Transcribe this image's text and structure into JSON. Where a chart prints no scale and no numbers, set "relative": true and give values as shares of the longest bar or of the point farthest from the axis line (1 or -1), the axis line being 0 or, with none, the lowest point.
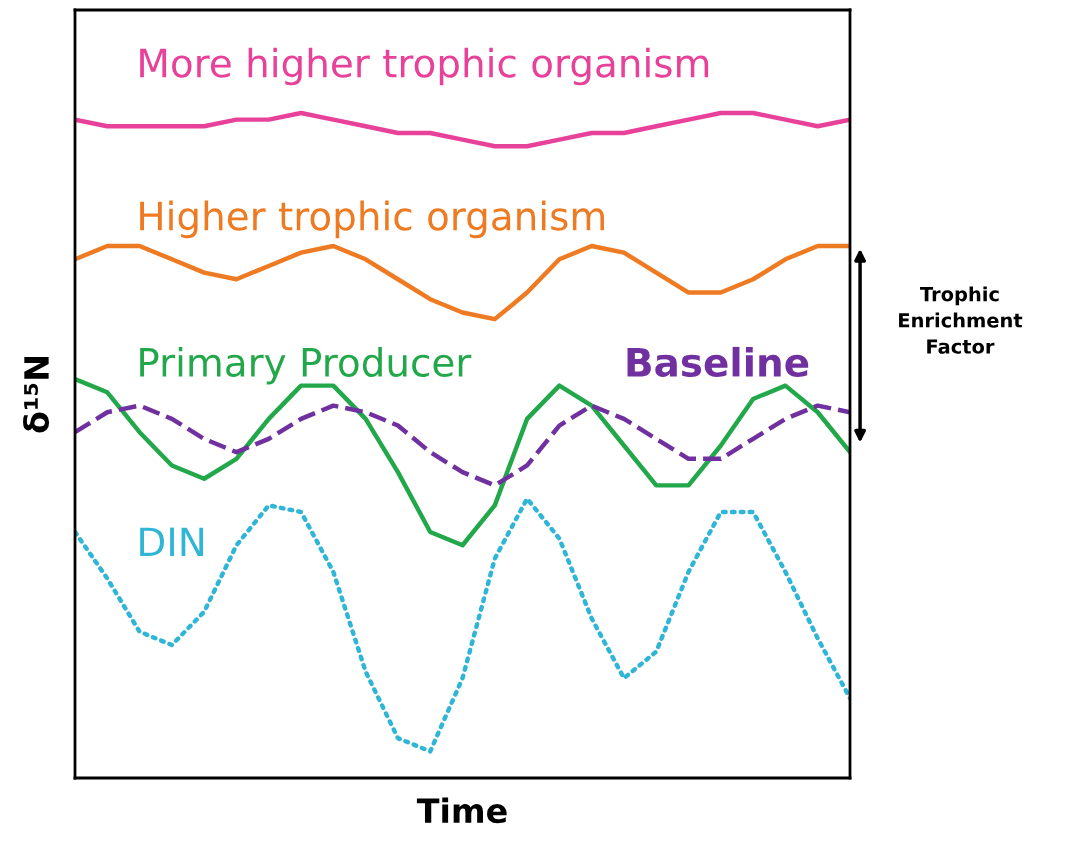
{
  "chart_data": {
    "type": "line",
    "relative": true,
    "xlabel": "Time",
    "ylabel": "δ¹⁵N",
    "categories": [
      null,
      null,
      null,
      null,
      null,
      null,
      null,
      null,
      null,
      null,
      null,
      null,
      null,
      null,
      null,
      null,
      null,
      null,
      null,
      null,
      null,
      null,
      null,
      null,
      null
    ],
    "series": [
      {
        "name": "More higher trophic organism",
        "color": "#e8419a",
        "line_style": "solid",
        "values": [
          0.99,
          0.98,
          0.98,
          0.98,
          0.98,
          0.99,
          0.99,
          1.0,
          0.99,
          0.98,
          0.97,
          0.97,
          0.96,
          0.95,
          0.95,
          0.96,
          0.97,
          0.97,
          0.98,
          0.99,
          1.0,
          1.0,
          0.99,
          0.98,
          0.99
        ]
      },
      {
        "name": "Higher trophic organism",
        "color": "#ee7a22",
        "line_style": "solid",
        "values": [
          0.78,
          0.8,
          0.8,
          0.78,
          0.76,
          0.75,
          0.77,
          0.79,
          0.8,
          0.78,
          0.75,
          0.72,
          0.7,
          0.69,
          0.73,
          0.78,
          0.8,
          0.79,
          0.76,
          0.73,
          0.73,
          0.75,
          0.78,
          0.8,
          0.8
        ]
      },
      {
        "name": "Primary Producer",
        "color": "#22a84a",
        "line_style": "solid",
        "values": [
          0.6,
          0.58,
          0.52,
          0.47,
          0.45,
          0.48,
          0.54,
          0.59,
          0.59,
          0.54,
          0.46,
          0.37,
          0.35,
          0.41,
          0.54,
          0.59,
          0.56,
          0.5,
          0.44,
          0.44,
          0.5,
          0.57,
          0.59,
          0.55,
          0.49
        ]
      },
      {
        "name": "Baseline",
        "color": "#7030a0",
        "line_style": "dashed",
        "values": [
          0.52,
          0.55,
          0.56,
          0.54,
          0.51,
          0.49,
          0.51,
          0.54,
          0.56,
          0.55,
          0.53,
          0.49,
          0.46,
          0.44,
          0.47,
          0.53,
          0.56,
          0.54,
          0.51,
          0.48,
          0.48,
          0.51,
          0.54,
          0.56,
          0.55
        ]
      },
      {
        "name": "DIN",
        "color": "#2fb5d6",
        "line_style": "dotted",
        "values": [
          0.37,
          0.3,
          0.22,
          0.2,
          0.25,
          0.35,
          0.41,
          0.4,
          0.31,
          0.16,
          0.06,
          0.04,
          0.15,
          0.33,
          0.42,
          0.36,
          0.24,
          0.15,
          0.19,
          0.31,
          0.4,
          0.4,
          0.31,
          0.21,
          0.12
        ]
      }
    ],
    "annotations": [
      "Trophic\nEnrichment\nFactor"
    ]
  }
}
